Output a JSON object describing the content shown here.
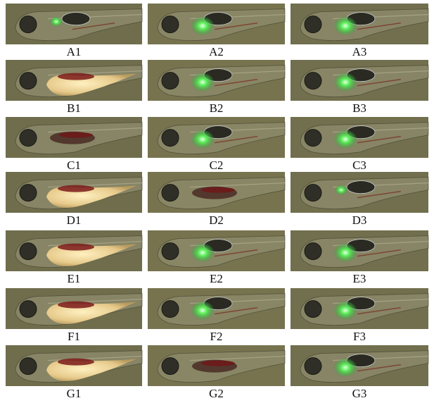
{
  "labels": [
    [
      "A1",
      "A2",
      "A3"
    ],
    [
      "B1",
      "B2",
      "B3"
    ],
    [
      "C1",
      "C2",
      "C3"
    ],
    [
      "D1",
      "D2",
      "D3"
    ],
    [
      "E1",
      "E2",
      "E3"
    ],
    [
      "F1",
      "F2",
      "F3"
    ],
    [
      "G1",
      "G2",
      "G3"
    ]
  ]
}
